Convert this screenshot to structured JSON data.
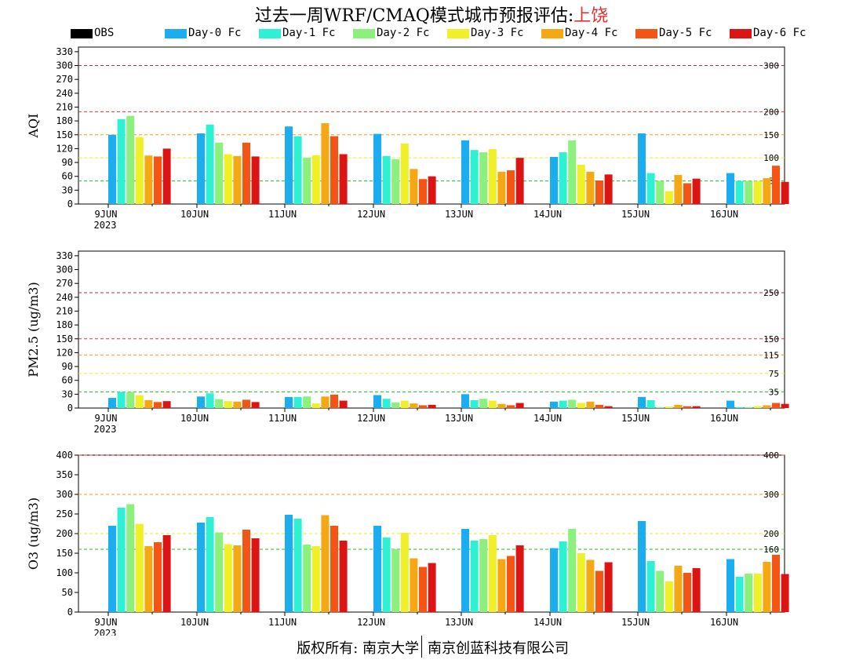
{
  "title": {
    "prefix": "过去一周WRF/CMAQ模式城市预报评估:",
    "city": "上饶"
  },
  "footer": {
    "left": "版权所有: 南京大学",
    "right": "南京创蓝科技有限公司"
  },
  "legend": [
    {
      "name": "OBS",
      "color": "#000000"
    },
    {
      "name": "Day-0 Fc",
      "color": "#1aaef0"
    },
    {
      "name": "Day-1 Fc",
      "color": "#2ef0d4"
    },
    {
      "name": "Day-2 Fc",
      "color": "#8cf07c"
    },
    {
      "name": "Day-3 Fc",
      "color": "#f0f028"
    },
    {
      "name": "Day-4 Fc",
      "color": "#f5a814"
    },
    {
      "name": "Day-5 Fc",
      "color": "#f55514"
    },
    {
      "name": "Day-6 Fc",
      "color": "#dc1414"
    }
  ],
  "chart_data": [
    {
      "type": "bar",
      "ylabel": "AQI",
      "ylim": [
        0,
        340
      ],
      "yticks": [
        0,
        30,
        60,
        90,
        120,
        150,
        180,
        210,
        240,
        270,
        300,
        330
      ],
      "categories": [
        "9JUN",
        "10JUN",
        "11JUN",
        "12JUN",
        "13JUN",
        "14JUN",
        "15JUN",
        "16JUN"
      ],
      "year_label": "2023",
      "thresholds": [
        {
          "value": 50,
          "label": "50",
          "color": "#22bb22"
        },
        {
          "value": 100,
          "label": "100",
          "color": "#eeee22"
        },
        {
          "value": 150,
          "label": "150",
          "color": "#ee9922"
        },
        {
          "value": 200,
          "label": "200",
          "color": "#dd3333"
        },
        {
          "value": 300,
          "label": "300",
          "color": "#993355"
        }
      ],
      "series": [
        {
          "name": "Day-0 Fc",
          "values": [
            150,
            153,
            168,
            152,
            138,
            102,
            153,
            67
          ]
        },
        {
          "name": "Day-1 Fc",
          "values": [
            184,
            172,
            147,
            104,
            117,
            112,
            67,
            50
          ]
        },
        {
          "name": "Day-2 Fc",
          "values": [
            191,
            133,
            100,
            97,
            112,
            138,
            50,
            50
          ]
        },
        {
          "name": "Day-3 Fc",
          "values": [
            145,
            108,
            106,
            131,
            119,
            85,
            28,
            50
          ]
        },
        {
          "name": "Day-4 Fc",
          "values": [
            105,
            104,
            175,
            76,
            70,
            70,
            63,
            56
          ]
        },
        {
          "name": "Day-5 Fc",
          "values": [
            103,
            133,
            147,
            54,
            73,
            51,
            45,
            83
          ]
        },
        {
          "name": "Day-6 Fc",
          "values": [
            120,
            103,
            108,
            60,
            100,
            64,
            55,
            48
          ]
        }
      ]
    },
    {
      "type": "bar",
      "ylabel": "PM2.5 (ug/m3)",
      "ylim": [
        0,
        340
      ],
      "yticks": [
        0,
        30,
        60,
        90,
        120,
        150,
        180,
        210,
        240,
        270,
        300,
        330
      ],
      "categories": [
        "9JUN",
        "10JUN",
        "11JUN",
        "12JUN",
        "13JUN",
        "14JUN",
        "15JUN",
        "16JUN"
      ],
      "year_label": "2023",
      "thresholds": [
        {
          "value": 35,
          "label": "35",
          "color": "#22bb22"
        },
        {
          "value": 75,
          "label": "75",
          "color": "#eeee22"
        },
        {
          "value": 115,
          "label": "115",
          "color": "#ee9922"
        },
        {
          "value": 150,
          "label": "150",
          "color": "#dd3333"
        },
        {
          "value": 250,
          "label": "250",
          "color": "#993355"
        }
      ],
      "series": [
        {
          "name": "Day-0 Fc",
          "values": [
            22,
            25,
            24,
            28,
            30,
            14,
            24,
            16
          ]
        },
        {
          "name": "Day-1 Fc",
          "values": [
            35,
            32,
            24,
            20,
            17,
            16,
            17,
            2
          ]
        },
        {
          "name": "Day-2 Fc",
          "values": [
            35,
            19,
            25,
            12,
            20,
            18,
            2,
            2
          ]
        },
        {
          "name": "Day-3 Fc",
          "values": [
            28,
            15,
            10,
            16,
            16,
            11,
            3,
            4
          ]
        },
        {
          "name": "Day-4 Fc",
          "values": [
            17,
            14,
            25,
            10,
            9,
            14,
            7,
            6
          ]
        },
        {
          "name": "Day-5 Fc",
          "values": [
            13,
            18,
            29,
            6,
            6,
            7,
            4,
            11
          ]
        },
        {
          "name": "Day-6 Fc",
          "values": [
            15,
            13,
            16,
            7,
            11,
            4,
            4,
            9
          ]
        }
      ]
    },
    {
      "type": "bar",
      "ylabel": "O3 (ug/m3)",
      "ylim": [
        0,
        400
      ],
      "yticks": [
        0,
        50,
        100,
        150,
        200,
        250,
        300,
        350,
        400
      ],
      "categories": [
        "9JUN",
        "10JUN",
        "11JUN",
        "12JUN",
        "13JUN",
        "14JUN",
        "15JUN",
        "16JUN"
      ],
      "year_label": "2023",
      "thresholds": [
        {
          "value": 160,
          "label": "160",
          "color": "#22bb22"
        },
        {
          "value": 200,
          "label": "200",
          "color": "#eeee22"
        },
        {
          "value": 300,
          "label": "300",
          "color": "#ee9922"
        },
        {
          "value": 400,
          "label": "400",
          "color": "#dd3333"
        }
      ],
      "series": [
        {
          "name": "Day-0 Fc",
          "values": [
            220,
            228,
            248,
            220,
            212,
            163,
            232,
            135
          ]
        },
        {
          "name": "Day-1 Fc",
          "values": [
            266,
            242,
            238,
            190,
            182,
            180,
            130,
            90
          ]
        },
        {
          "name": "Day-2 Fc",
          "values": [
            275,
            203,
            172,
            160,
            186,
            212,
            105,
            98
          ]
        },
        {
          "name": "Day-3 Fc",
          "values": [
            225,
            173,
            168,
            202,
            196,
            150,
            78,
            98
          ]
        },
        {
          "name": "Day-4 Fc",
          "values": [
            168,
            170,
            247,
            137,
            135,
            133,
            118,
            128
          ]
        },
        {
          "name": "Day-5 Fc",
          "values": [
            178,
            210,
            220,
            115,
            143,
            105,
            100,
            146
          ]
        },
        {
          "name": "Day-6 Fc",
          "values": [
            196,
            188,
            182,
            125,
            170,
            127,
            112,
            97
          ]
        }
      ]
    }
  ]
}
